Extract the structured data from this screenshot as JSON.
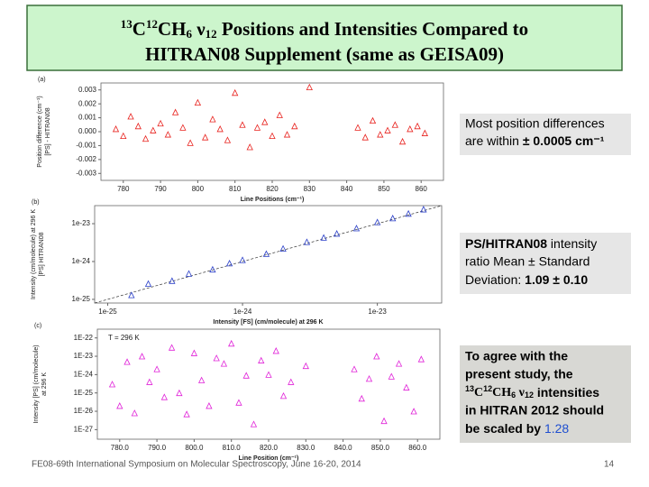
{
  "title": {
    "iso1": "13",
    "c1": "C",
    "iso2": "12",
    "c2": "CH",
    "sub1": "6",
    "nu": " ν",
    "sub2": "12",
    "rest": " Positions and Intensities Compared to",
    "line2": "HITRAN08 Supplement (same as GEISA09)"
  },
  "chart_data": [
    {
      "type": "scatter",
      "panel_label": "(a)",
      "xlabel": "Line Positions (cm⁻¹)",
      "ylabel": [
        "Position difference (cm⁻¹)",
        "[PS] - HITRAN08"
      ],
      "color": "#e8201c",
      "x": [
        778,
        780,
        782,
        784,
        786,
        788,
        790,
        792,
        794,
        796,
        798,
        800,
        802,
        804,
        806,
        808,
        810,
        812,
        814,
        816,
        818,
        820,
        822,
        824,
        826,
        830,
        843,
        845,
        847,
        849,
        851,
        853,
        855,
        857,
        859,
        861
      ],
      "values": [
        0.0002,
        -0.0003,
        0.0011,
        0.0004,
        -0.0005,
        0.0001,
        0.0006,
        -0.0002,
        0.0014,
        0.0003,
        -0.0008,
        0.0021,
        -0.0004,
        0.0009,
        0.0002,
        -0.0006,
        0.0028,
        0.0005,
        -0.0011,
        0.0003,
        0.0007,
        -0.0003,
        0.0012,
        -0.0002,
        0.0004,
        0.0032,
        0.0003,
        -0.0004,
        0.0008,
        -0.0002,
        0.0001,
        0.0005,
        -0.0007,
        0.0002,
        0.0004,
        -0.0001
      ],
      "xlim": [
        774,
        866
      ],
      "ylim": [
        -0.0035,
        0.0035
      ],
      "xticks": [
        780,
        790,
        800,
        810,
        820,
        830,
        840,
        850,
        860
      ],
      "yticks": [
        0.003,
        0.002,
        0.001,
        {
          "value": 0,
          "label": "0.000"
        },
        -0.001,
        -0.002,
        -0.003
      ]
    },
    {
      "type": "scatter",
      "panel_label": "(b)",
      "xlabel": "Intensity [FS] (cm/molecule) at 296 K",
      "ylabel": [
        "Intensity (cm/molecule) at 296 K",
        "[PS] HITRAN08"
      ],
      "color": "#2a3fc8",
      "xscale": "log",
      "yscale": "log",
      "x": [
        1.5e-25,
        2e-25,
        3e-25,
        4e-25,
        6e-25,
        8e-25,
        1e-24,
        1.5e-24,
        2e-24,
        3e-24,
        4e-24,
        5e-24,
        7e-24,
        1e-23,
        1.3e-23,
        1.7e-23,
        2.2e-23
      ],
      "values": [
        1.3e-25,
        2.6e-25,
        3.1e-25,
        4.8e-25,
        6.2e-25,
        9e-25,
        1.1e-24,
        1.6e-24,
        2.2e-24,
        3.3e-24,
        4.3e-24,
        5.5e-24,
        7.6e-24,
        1.1e-23,
        1.4e-23,
        1.85e-23,
        2.4e-23
      ],
      "xlim": [
        8e-26,
        3e-23
      ],
      "ylim": [
        8e-26,
        3e-23
      ],
      "xticks": [
        1e-25,
        1e-24,
        1e-23
      ],
      "yticks": [
        1e-23,
        1e-24,
        1e-25
      ]
    },
    {
      "type": "scatter",
      "panel_label": "(c)",
      "xlabel": "Line Position (cm⁻¹)",
      "ylabel": [
        "Intensity [PS] (cm/molecule)",
        "at 296 K"
      ],
      "annotation": "T = 296 K",
      "color": "#e020d8",
      "yscale": "log",
      "x": [
        778,
        780,
        782,
        784,
        786,
        788,
        790,
        792,
        794,
        796,
        798,
        800,
        802,
        804,
        806,
        808,
        810,
        812,
        814,
        816,
        818,
        820,
        822,
        824,
        826,
        830,
        843,
        845,
        847,
        849,
        851,
        853,
        855,
        857,
        859,
        861
      ],
      "values": [
        3e-25,
        2e-26,
        5e-24,
        8e-27,
        1e-23,
        4e-25,
        2e-24,
        6e-26,
        3e-23,
        1e-25,
        7e-27,
        1.5e-23,
        5e-25,
        2e-26,
        8e-24,
        4e-24,
        5e-23,
        3e-26,
        9e-25,
        2e-27,
        6e-24,
        1e-24,
        2e-23,
        7e-26,
        4e-25,
        3e-24,
        2e-24,
        5e-26,
        6e-25,
        1e-23,
        3e-27,
        8e-25,
        4e-24,
        2e-25,
        1e-26,
        7e-24
      ],
      "xlim": [
        774,
        866
      ],
      "ylim": [
        3e-28,
        3e-22
      ],
      "xticks": [
        {
          "value": 780,
          "label": "780.0"
        },
        {
          "value": 790,
          "label": "790.0"
        },
        {
          "value": 800,
          "label": "800.0"
        },
        {
          "value": 810,
          "label": "810.0"
        },
        {
          "value": 820,
          "label": "820.0"
        },
        {
          "value": 830,
          "label": "830.0"
        },
        {
          "value": 840,
          "label": "840.0"
        },
        {
          "value": 850,
          "label": "850.0"
        },
        {
          "value": 860,
          "label": "860.0"
        }
      ],
      "yticks": [
        {
          "value": 1e-22,
          "label": "1E-22"
        },
        {
          "value": 1e-23,
          "label": "1E-23"
        },
        {
          "value": 1e-24,
          "label": "1E-24"
        },
        {
          "value": 1e-25,
          "label": "1E-25"
        },
        {
          "value": 1e-26,
          "label": "1E-26"
        },
        {
          "value": 1e-27,
          "label": "1E-27"
        }
      ]
    }
  ],
  "notes": [
    {
      "line1": "Most position differences",
      "line2": "are within ",
      "bold": "± 0.0005 cm⁻¹"
    },
    {
      "bold1": "PS/HITRAN08",
      "line1": " intensity",
      "line2": "ratio Mean ± Standard",
      "line3": "Deviation:  ",
      "bold": "1.09 ± 0.10"
    },
    {
      "line1": "To agree with the",
      "line2": "present study, the",
      "iso1": "13",
      "c1": "C",
      "iso2": "12",
      "c2": "CH",
      "sub1": "6",
      "nu": " ν",
      "sub2": "12",
      "line3": " intensities",
      "line4": "in HITRAN 2012 should",
      "line5": "be scaled by ",
      "value": "1.28"
    }
  ],
  "footer": {
    "text": "FE08-69th International Symposium on Molecular Spectroscopy, June 16-20, 2014",
    "page": "14"
  }
}
